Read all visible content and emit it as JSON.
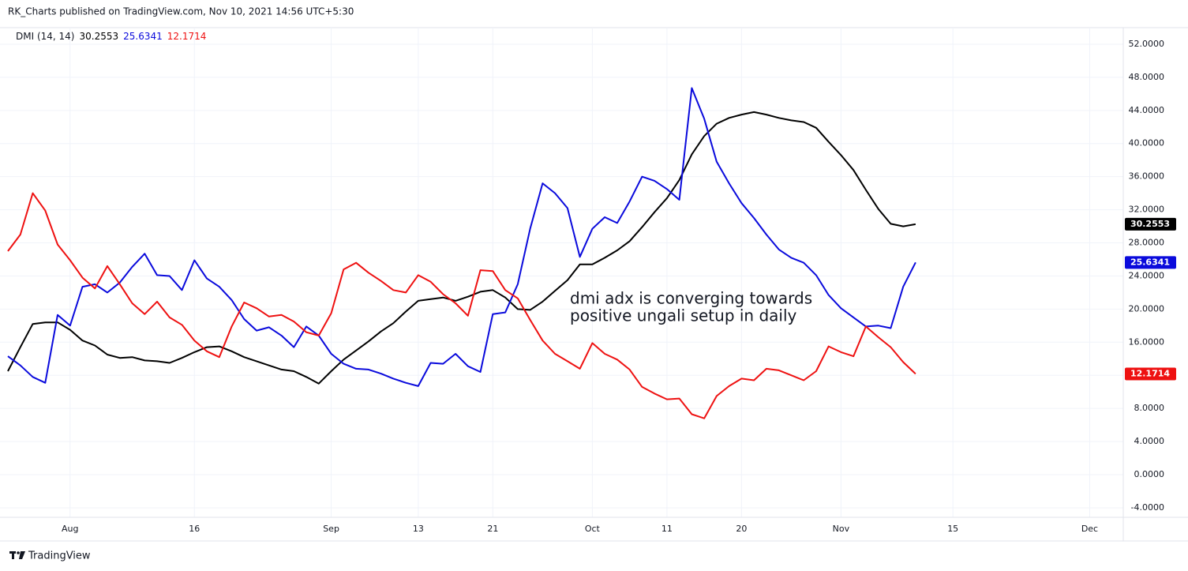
{
  "header": "RK_Charts published on TradingView.com, Nov 10, 2021 14:56 UTC+5:30",
  "footer": "TradingView",
  "chart_data": {
    "type": "line",
    "indicator": "DMI (14, 14)",
    "annotation": [
      "dmi adx is converging towards",
      "positive ungali setup in daily"
    ],
    "x": [
      0,
      1,
      2,
      3,
      4,
      5,
      6,
      7,
      8,
      9,
      10,
      11,
      12,
      13,
      14,
      15,
      16,
      17,
      18,
      19,
      20,
      21,
      22,
      23,
      24,
      25,
      26,
      27,
      28,
      29,
      30,
      31,
      32,
      33,
      34,
      35,
      36,
      37,
      38,
      39,
      40,
      41,
      42,
      43,
      44,
      45,
      46,
      47,
      48,
      49,
      50,
      51,
      52,
      53,
      54,
      55,
      56,
      57,
      58,
      59,
      60,
      61,
      62,
      63,
      64,
      65,
      66,
      67,
      68,
      69,
      70,
      71,
      72,
      73
    ],
    "xlim": [
      0,
      89.7
    ],
    "xticks": [
      {
        "value": 5,
        "label": "Aug"
      },
      {
        "value": 15,
        "label": "16"
      },
      {
        "value": 26,
        "label": "Sep"
      },
      {
        "value": 33,
        "label": "13"
      },
      {
        "value": 39,
        "label": "21"
      },
      {
        "value": 47,
        "label": "Oct"
      },
      {
        "value": 53,
        "label": "11"
      },
      {
        "value": 59,
        "label": "20"
      },
      {
        "value": 67,
        "label": "Nov"
      },
      {
        "value": 76,
        "label": "15"
      },
      {
        "value": 87,
        "label": "Dec"
      }
    ],
    "ylim": [
      -5.15,
      54.0
    ],
    "yticks": [
      {
        "value": 52,
        "label": "52.0000"
      },
      {
        "value": 48,
        "label": "48.0000"
      },
      {
        "value": 44,
        "label": "44.0000"
      },
      {
        "value": 40,
        "label": "40.0000"
      },
      {
        "value": 36,
        "label": "36.0000"
      },
      {
        "value": 32,
        "label": "32.0000"
      },
      {
        "value": 28,
        "label": "28.0000"
      },
      {
        "value": 24,
        "label": "24.0000"
      },
      {
        "value": 20,
        "label": "20.0000"
      },
      {
        "value": 16,
        "label": "16.0000"
      },
      {
        "value": 12,
        "label": "12.0000"
      },
      {
        "value": 8,
        "label": "8.0000"
      },
      {
        "value": 4,
        "label": "4.0000"
      },
      {
        "value": 0,
        "label": "0.0000"
      },
      {
        "value": -4,
        "label": "-4.0000"
      }
    ],
    "grid": true,
    "series": [
      {
        "color": "#000000",
        "values": [
          12.5,
          15.4,
          18.2,
          18.4,
          18.4,
          17.5,
          16.2,
          15.6,
          14.5,
          14.1,
          14.2,
          13.8,
          13.7,
          13.5,
          14.1,
          14.8,
          15.4,
          15.5,
          14.9,
          14.2,
          13.7,
          13.2,
          12.7,
          12.5,
          11.8,
          11.0,
          12.5,
          13.9,
          15.0,
          16.1,
          17.3,
          18.3,
          19.7,
          21.0,
          21.2,
          21.4,
          21.0,
          21.5,
          22.1,
          22.3,
          21.4,
          20.0,
          19.9,
          20.9,
          22.2,
          23.5,
          25.4,
          25.4,
          26.2,
          27.1,
          28.2,
          29.9,
          31.7,
          33.4,
          35.6,
          38.7,
          40.9,
          42.4,
          43.1,
          43.5,
          43.8,
          43.5,
          43.1,
          42.8,
          42.6,
          41.9,
          40.2,
          38.6,
          36.8,
          34.4,
          32.1,
          30.3,
          30.0,
          30.2553
        ]
      },
      {
        "color": "#0a0adc",
        "values": [
          14.3,
          13.2,
          11.8,
          11.1,
          19.3,
          18.0,
          22.7,
          23.0,
          22.0,
          23.2,
          25.1,
          26.7,
          24.1,
          24.0,
          22.3,
          25.9,
          23.7,
          22.7,
          21.1,
          18.8,
          17.4,
          17.8,
          16.8,
          15.4,
          17.9,
          16.8,
          14.6,
          13.4,
          12.8,
          12.7,
          12.2,
          11.6,
          11.1,
          10.7,
          13.5,
          13.4,
          14.6,
          13.1,
          12.4,
          19.4,
          19.6,
          23.0,
          29.7,
          35.2,
          34.0,
          32.2,
          26.3,
          29.7,
          31.1,
          30.4,
          33.0,
          36.0,
          35.5,
          34.5,
          33.2,
          46.7,
          43.0,
          37.8,
          35.2,
          32.8,
          31.0,
          29.0,
          27.2,
          26.2,
          25.6,
          24.1,
          21.7,
          20.1,
          19.0,
          17.9,
          18.0,
          17.7,
          22.7,
          25.6341
        ]
      },
      {
        "color": "#ee1111",
        "values": [
          27.0,
          29.0,
          34.0,
          31.9,
          27.8,
          25.9,
          23.8,
          22.5,
          25.2,
          23.0,
          20.7,
          19.4,
          20.9,
          19.0,
          18.1,
          16.2,
          14.9,
          14.2,
          17.9,
          20.8,
          20.1,
          19.1,
          19.3,
          18.5,
          17.2,
          16.8,
          19.5,
          24.8,
          25.6,
          24.4,
          23.4,
          22.3,
          22.0,
          24.1,
          23.3,
          21.8,
          20.7,
          19.2,
          24.7,
          24.6,
          22.3,
          21.3,
          18.7,
          16.2,
          14.6,
          13.7,
          12.8,
          15.9,
          14.6,
          13.9,
          12.7,
          10.6,
          9.8,
          9.1,
          9.2,
          7.3,
          6.8,
          9.5,
          10.7,
          11.6,
          11.4,
          12.8,
          12.6,
          12.0,
          11.4,
          12.5,
          15.5,
          14.8,
          14.3,
          17.9,
          16.6,
          15.4,
          13.6,
          12.1714
        ]
      }
    ]
  }
}
